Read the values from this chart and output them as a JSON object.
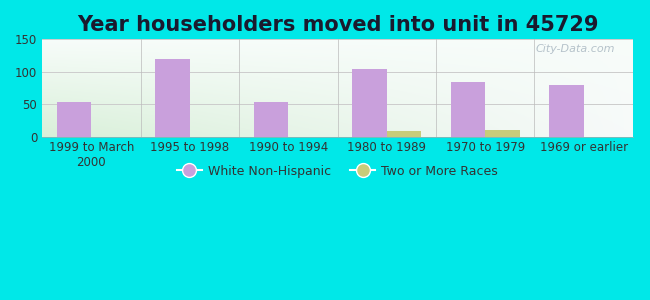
{
  "title": "Year householders moved into unit in 45729",
  "categories": [
    "1999 to March\n2000",
    "1995 to 1998",
    "1990 to 1994",
    "1980 to 1989",
    "1970 to 1979",
    "1969 or earlier"
  ],
  "white_non_hispanic": [
    53,
    119,
    53,
    104,
    84,
    80
  ],
  "two_or_more_races": [
    0,
    0,
    0,
    9,
    10,
    0
  ],
  "bar_color_white": "#c9a0dc",
  "bar_color_two": "#c8cc7a",
  "bar_width": 0.35,
  "ylim": [
    0,
    150
  ],
  "yticks": [
    0,
    50,
    100,
    150
  ],
  "bg_outer": "#00e8e8",
  "title_fontsize": 15,
  "title_color": "#1a1a2e",
  "legend_labels": [
    "White Non-Hispanic",
    "Two or More Races"
  ],
  "watermark": "City-Data.com"
}
